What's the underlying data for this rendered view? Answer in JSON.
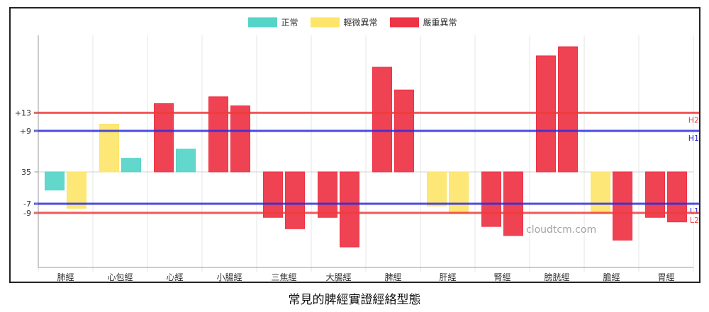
{
  "chart_data": {
    "type": "bar",
    "categories": [
      "肺經",
      "心包經",
      "心經",
      "小腸經",
      "三焦經",
      "大腸經",
      "脾經",
      "肝經",
      "腎經",
      "膀胱經",
      "膽經",
      "胃經"
    ],
    "bars": [
      [
        {
          "value": -8,
          "level": "正常"
        },
        {
          "value": -16,
          "level": "輕微異常"
        }
      ],
      [
        {
          "value": 21,
          "level": "輕微異常"
        },
        {
          "value": 6,
          "level": "正常"
        }
      ],
      [
        {
          "value": 30,
          "level": "嚴重異常"
        },
        {
          "value": 10,
          "level": "正常"
        }
      ],
      [
        {
          "value": 33,
          "level": "嚴重異常"
        },
        {
          "value": 29,
          "level": "嚴重異常"
        }
      ],
      [
        {
          "value": -20,
          "level": "嚴重異常"
        },
        {
          "value": -25,
          "level": "嚴重異常"
        }
      ],
      [
        {
          "value": -20,
          "level": "嚴重異常"
        },
        {
          "value": -33,
          "level": "嚴重異常"
        }
      ],
      [
        {
          "value": 46,
          "level": "嚴重異常"
        },
        {
          "value": 36,
          "level": "嚴重異常"
        }
      ],
      [
        {
          "value": -15,
          "level": "輕微異常"
        },
        {
          "value": -18,
          "level": "輕微異常"
        }
      ],
      [
        {
          "value": -24,
          "level": "嚴重異常"
        },
        {
          "value": -28,
          "level": "嚴重異常"
        }
      ],
      [
        {
          "value": 51,
          "level": "嚴重異常"
        },
        {
          "value": 55,
          "level": "嚴重異常"
        }
      ],
      [
        {
          "value": -18,
          "level": "輕微異常"
        },
        {
          "value": -30,
          "level": "嚴重異常"
        }
      ],
      [
        {
          "value": -20,
          "level": "嚴重異常"
        },
        {
          "value": -22,
          "level": "嚴重異常"
        }
      ]
    ],
    "ylim": [
      -42,
      60
    ],
    "baseline_label": "35",
    "y_tick_labels": [
      {
        "value": 26,
        "label": "+13"
      },
      {
        "value": 18,
        "label": "+9"
      },
      {
        "value": 0,
        "label": "35"
      },
      {
        "value": -14,
        "label": "-7"
      },
      {
        "value": -18,
        "label": "-9"
      }
    ],
    "threshold_lines": [
      {
        "name": "H2",
        "value": 26,
        "color": "#ee3b3b"
      },
      {
        "name": "H1",
        "value": 18,
        "color": "#2c2cdd"
      },
      {
        "name": "L1",
        "value": -14,
        "color": "#2c2cdd"
      },
      {
        "name": "L2",
        "value": -18,
        "color": "#ee3b3b"
      }
    ],
    "legend": {
      "placement": "top-center",
      "items": [
        {
          "name": "正常",
          "color": "#55d4c8"
        },
        {
          "name": "輕微異常",
          "color": "#fde56a"
        },
        {
          "name": "嚴重異常",
          "color": "#ee3344"
        }
      ]
    },
    "grid": true
  },
  "watermark": "cloudtcm.com",
  "caption": "常見的脾經實證經絡型態"
}
